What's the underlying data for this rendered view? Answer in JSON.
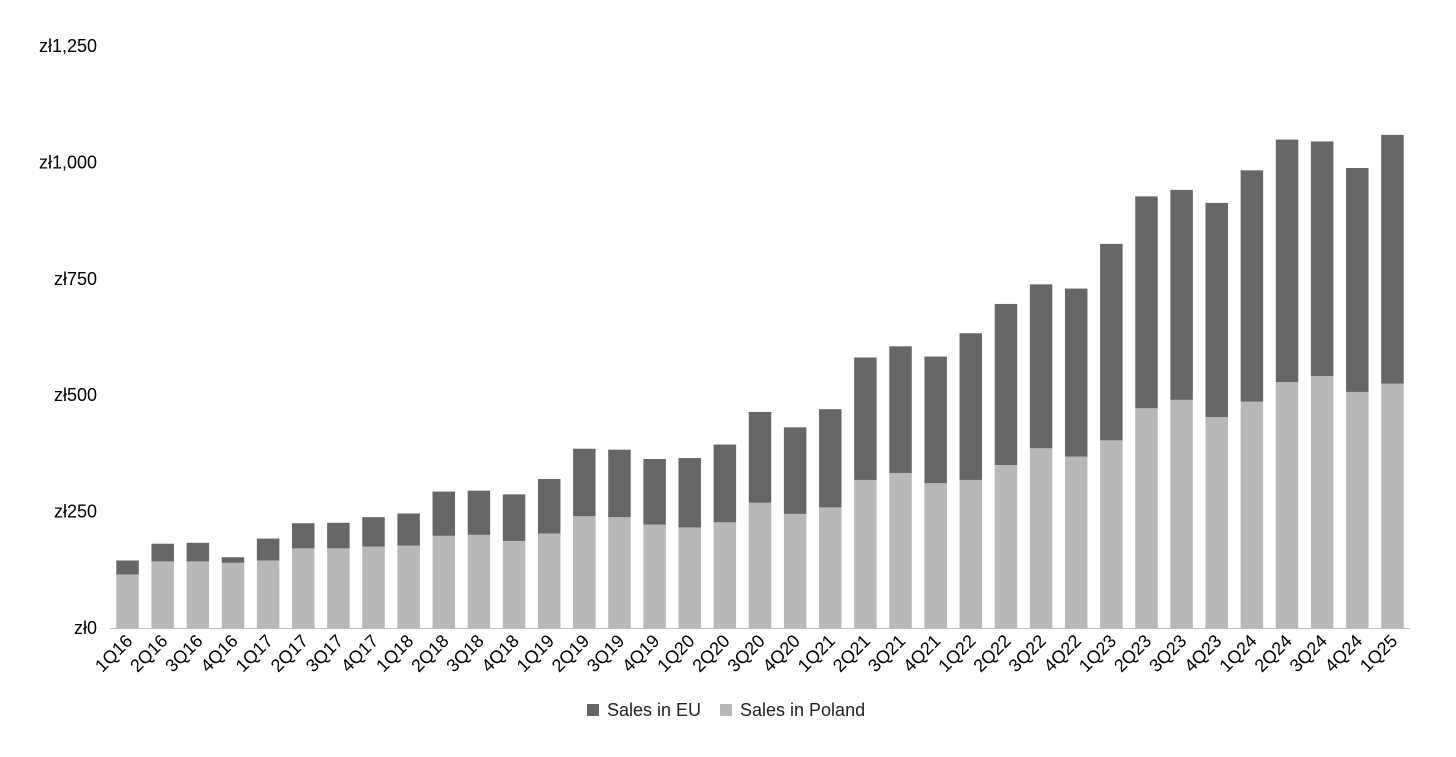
{
  "chart_data": {
    "type": "bar",
    "stacked": true,
    "title": "",
    "xlabel": "",
    "ylabel": "",
    "ylim": [
      0,
      1250
    ],
    "yticks": [
      0,
      250,
      500,
      750,
      1000,
      1250
    ],
    "ytick_labels": [
      "zł0",
      "zł250",
      "zł500",
      "zł750",
      "zł1,000",
      "zł1,250"
    ],
    "grid": false,
    "legend_position": "bottom",
    "categories": [
      "1Q16",
      "2Q16",
      "3Q16",
      "4Q16",
      "1Q17",
      "2Q17",
      "3Q17",
      "4Q17",
      "1Q18",
      "2Q18",
      "3Q18",
      "4Q18",
      "1Q19",
      "2Q19",
      "3Q19",
      "4Q19",
      "1Q20",
      "2Q20",
      "3Q20",
      "4Q20",
      "1Q21",
      "2Q21",
      "3Q21",
      "4Q21",
      "1Q22",
      "2Q22",
      "3Q22",
      "4Q22",
      "1Q23",
      "2Q23",
      "3Q23",
      "4Q23",
      "1Q24",
      "2Q24",
      "3Q24",
      "4Q24",
      "1Q25"
    ],
    "series": [
      {
        "name": "Sales in Poland",
        "color": "#b8b8b8",
        "values": [
          115,
          143,
          143,
          140,
          145,
          171,
          171,
          175,
          177,
          198,
          200,
          187,
          203,
          240,
          238,
          222,
          216,
          227,
          269,
          245,
          259,
          318,
          333,
          311,
          318,
          350,
          386,
          368,
          403,
          472,
          490,
          453,
          486,
          528,
          541,
          507,
          525
        ]
      },
      {
        "name": "Sales in EU",
        "color": "#666666",
        "values": [
          30,
          38,
          40,
          12,
          47,
          54,
          55,
          63,
          69,
          95,
          95,
          100,
          117,
          145,
          145,
          141,
          149,
          167,
          195,
          186,
          211,
          263,
          272,
          272,
          315,
          346,
          352,
          361,
          422,
          455,
          451,
          460,
          497,
          521,
          504,
          481,
          534
        ]
      }
    ]
  }
}
